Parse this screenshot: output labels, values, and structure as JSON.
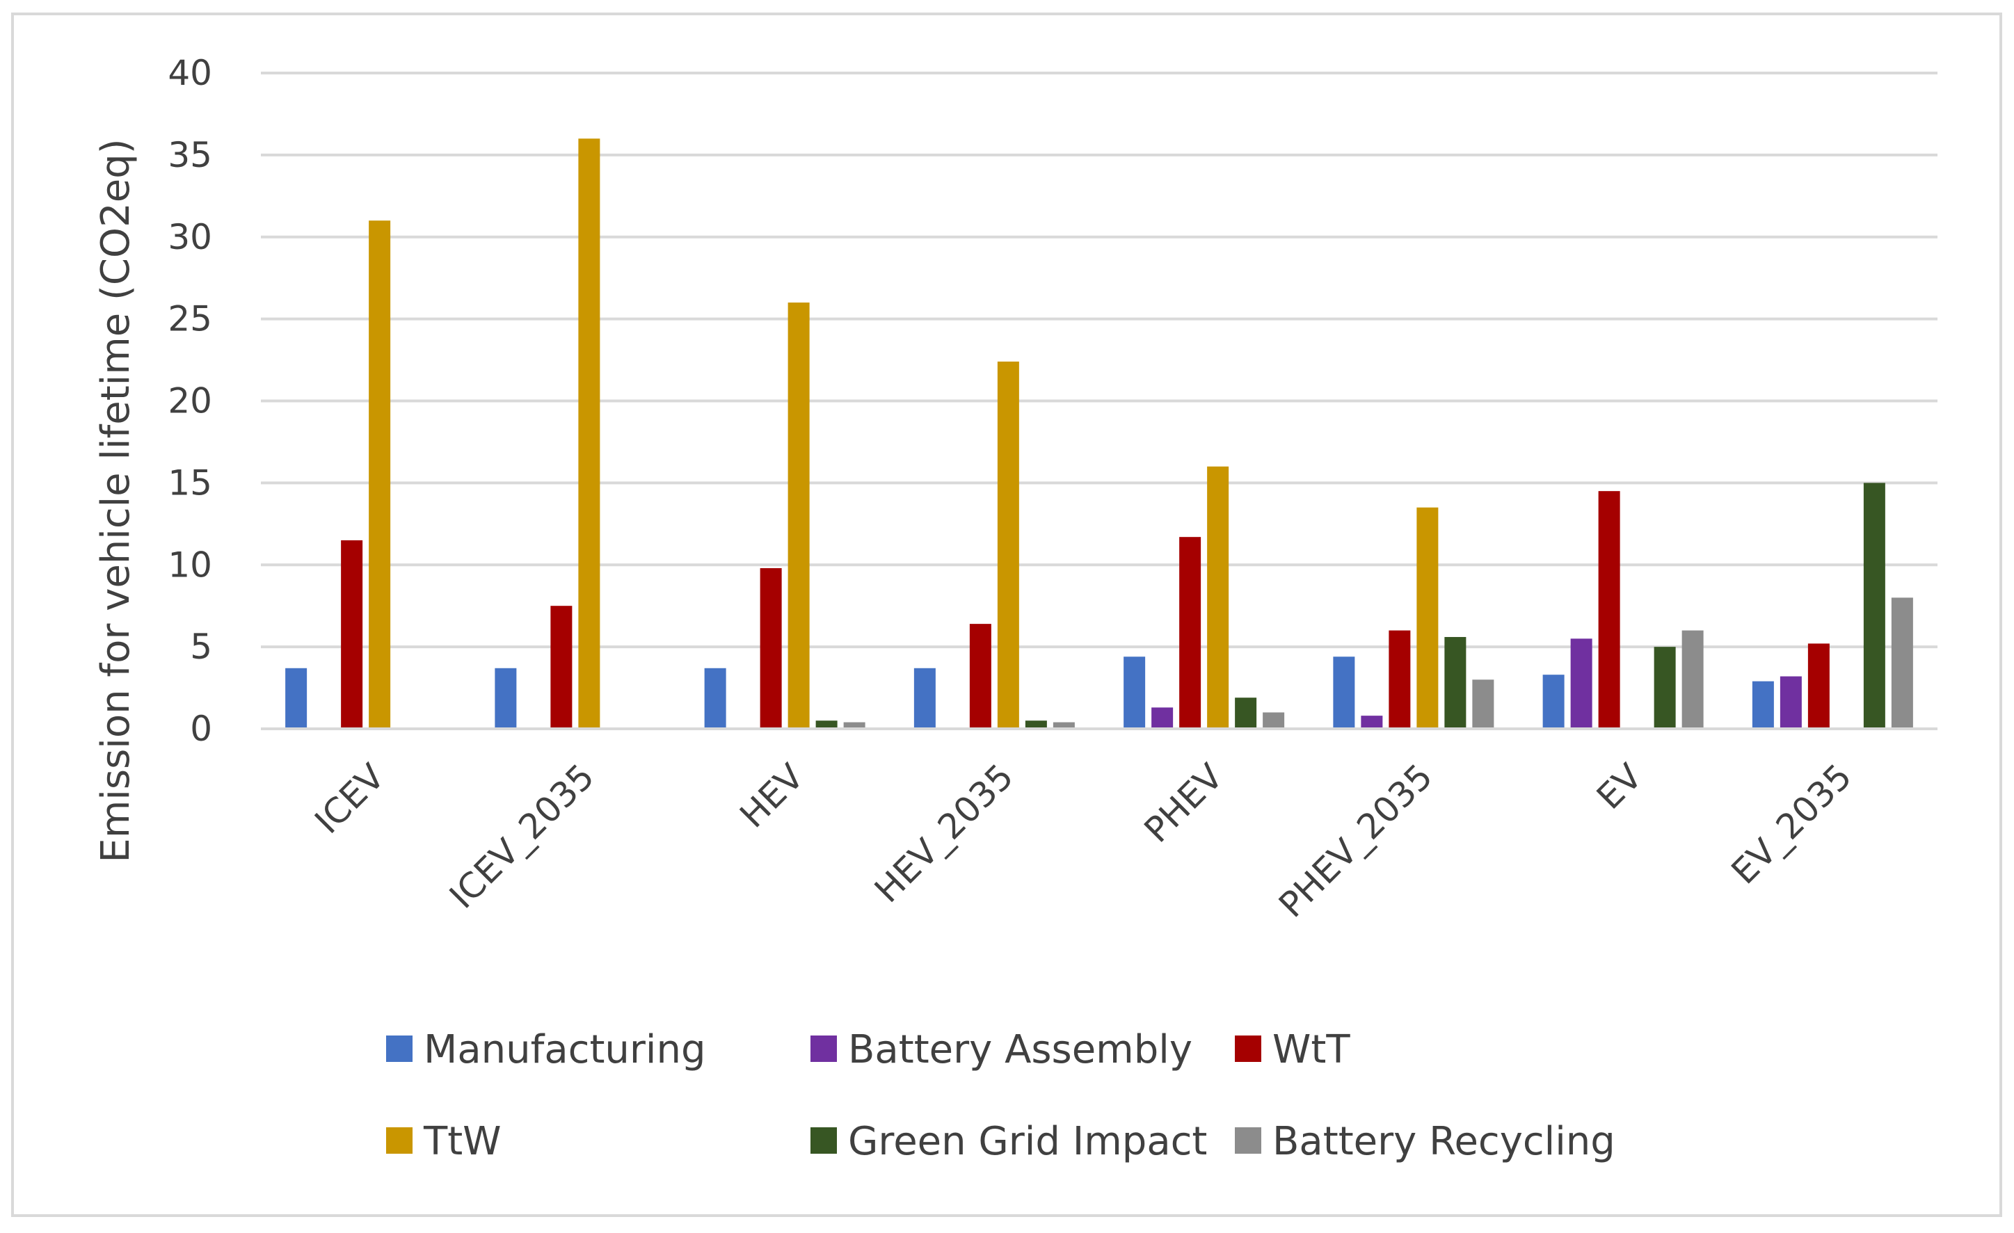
{
  "chart_data": {
    "type": "bar",
    "title": "",
    "xlabel": "",
    "ylabel": "Emission for vehicle lifetime (CO2eq)",
    "ylim": [
      0,
      40
    ],
    "yticks": [
      0,
      5,
      10,
      15,
      20,
      25,
      30,
      35,
      40
    ],
    "grid": true,
    "legend_position": "bottom",
    "categories": [
      "ICEV",
      "ICEV_2035",
      "HEV",
      "HEV_2035",
      "PHEV",
      "PHEV_2035",
      "EV",
      "EV_2035"
    ],
    "series": [
      {
        "name": "Manufacturing",
        "color": "#4472C4",
        "values": [
          3.7,
          3.7,
          3.7,
          3.7,
          4.4,
          4.4,
          3.3,
          2.9
        ]
      },
      {
        "name": "Battery Assembly",
        "color": "#7030A0",
        "values": [
          0,
          0,
          0,
          0,
          1.3,
          0.8,
          5.5,
          3.2
        ]
      },
      {
        "name": "WtT",
        "color": "#A50000",
        "values": [
          11.5,
          7.5,
          9.8,
          6.4,
          11.7,
          6.0,
          14.5,
          5.2
        ]
      },
      {
        "name": "TtW",
        "color": "#C99600",
        "values": [
          31.0,
          36.0,
          26.0,
          22.4,
          16.0,
          13.5,
          0,
          0
        ]
      },
      {
        "name": "Green Grid Impact",
        "color": "#375623",
        "values": [
          0,
          0,
          0.5,
          0.5,
          1.9,
          5.6,
          5.0,
          15.0
        ]
      },
      {
        "name": "Battery Recycling",
        "color": "#8C8C8C",
        "values": [
          0,
          0,
          0.4,
          0.4,
          1.0,
          3.0,
          6.0,
          8.0
        ]
      }
    ]
  }
}
